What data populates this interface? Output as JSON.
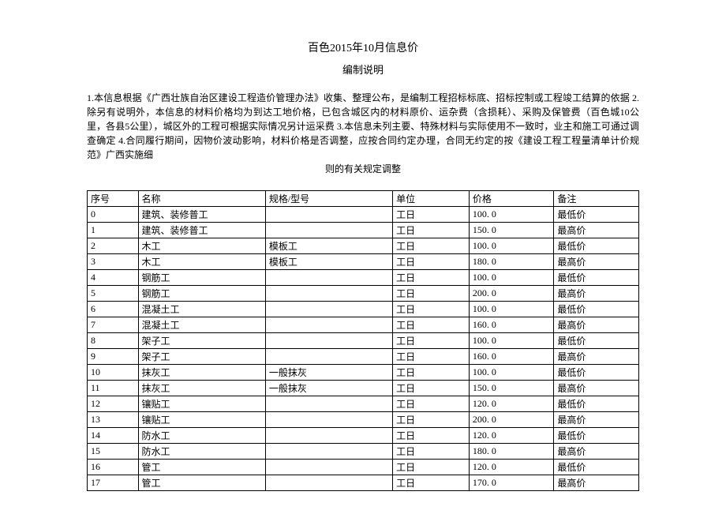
{
  "title": "百色2015年10月信息价",
  "subtitle": "编制说明",
  "description_main": "1.本信息根据《广西壮族自治区建设工程造价管理办法》收集、整理公布，是编制工程招标标底、招标控制或工程竣工结算的依据 2.除另有说明外，本信息的材料价格均为到达工地价格，已包含城区内的材料原价、运杂费（含损耗）、采购及保管费（百色城10公里，各县5公里），城区外的工程可根据实际情况另计运采费 3.本信息未列主要、特殊材料与实际使用不一致时，业主和施工可通过调查确定 4.合同履行期间，因物价波动影响，材料价格是否调整，应按合同约定办理，合同无约定的按《建设工程工程量清单计价规范》广西实施细",
  "description_last": "则的有关规定调整",
  "table": {
    "headers": [
      "序号",
      "名称",
      "规格/型号",
      "单位",
      "价格",
      "备注"
    ],
    "rows": [
      [
        "0",
        "建筑、装修普工",
        "",
        "工日",
        "100. 0",
        "最低价"
      ],
      [
        "1",
        "建筑、装修普工",
        "",
        "工日",
        "150. 0",
        "最高价"
      ],
      [
        "2",
        "木工",
        "模板工",
        "工日",
        "100. 0",
        "最低价"
      ],
      [
        "3",
        "木工",
        "模板工",
        "工日",
        "180. 0",
        "最高价"
      ],
      [
        "4",
        "钢筋工",
        "",
        "工日",
        "100. 0",
        "最低价"
      ],
      [
        "5",
        "钢筋工",
        "",
        "工日",
        "200. 0",
        "最高价"
      ],
      [
        "6",
        "混凝土工",
        "",
        "工日",
        "100. 0",
        "最低价"
      ],
      [
        "7",
        "混凝土工",
        "",
        "工日",
        "160. 0",
        "最高价"
      ],
      [
        "8",
        "架子工",
        "",
        "工日",
        "100. 0",
        "最低价"
      ],
      [
        "9",
        "架子工",
        "",
        "工日",
        "160. 0",
        "最高价"
      ],
      [
        "10",
        "抹灰工",
        "一般抹灰",
        "工日",
        "100. 0",
        "最低价"
      ],
      [
        "11",
        "抹灰工",
        "一般抹灰",
        "工日",
        "150. 0",
        "最高价"
      ],
      [
        "12",
        "镶贴工",
        "",
        "工日",
        "120. 0",
        "最低价"
      ],
      [
        "13",
        "镶贴工",
        "",
        "工日",
        "200. 0",
        "最高价"
      ],
      [
        "14",
        "防水工",
        "",
        "工日",
        "120. 0",
        "最低价"
      ],
      [
        "15",
        "防水工",
        "",
        "工日",
        "180. 0",
        "最高价"
      ],
      [
        "16",
        "管工",
        "",
        "工日",
        "120. 0",
        "最低价"
      ],
      [
        "17",
        "管工",
        "",
        "工日",
        "170. 0",
        "最高价"
      ]
    ]
  }
}
